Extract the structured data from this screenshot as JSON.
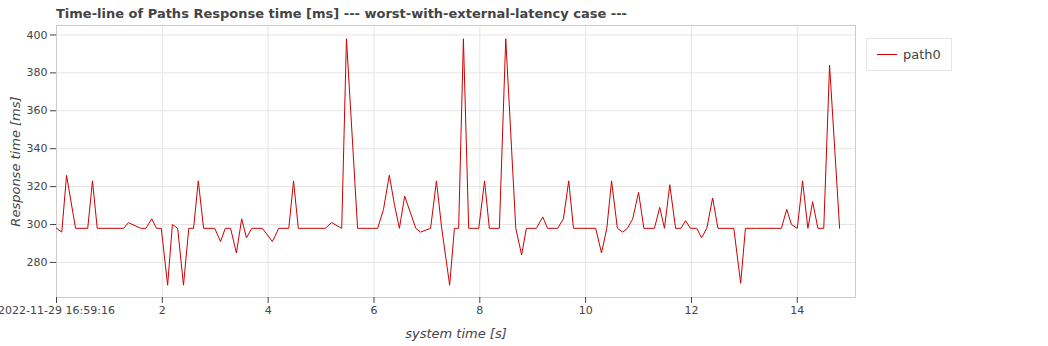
{
  "chart_data": {
    "type": "line",
    "title": "Time-line of Paths Response time [ms] --- worst-with-external-latency case ---",
    "xlabel": "system time [s]",
    "ylabel": "Response time [ms]",
    "x": [
      0,
      0.1,
      0.19,
      0.36,
      0.59,
      0.68,
      0.77,
      1.27,
      1.36,
      1.59,
      1.69,
      1.8,
      1.89,
      1.98,
      2.1,
      2.19,
      2.29,
      2.4,
      2.5,
      2.59,
      2.68,
      2.78,
      2.99,
      3.1,
      3.19,
      3.29,
      3.4,
      3.5,
      3.59,
      3.69,
      3.89,
      4.08,
      4.2,
      4.39,
      4.48,
      4.57,
      5.08,
      5.2,
      5.39,
      5.48,
      5.69,
      5.88,
      5.97,
      6.07,
      6.18,
      6.29,
      6.39,
      6.48,
      6.58,
      6.79,
      6.88,
      7.07,
      7.18,
      7.28,
      7.43,
      7.52,
      7.6,
      7.69,
      7.79,
      7.88,
      7.98,
      8.09,
      8.18,
      8.37,
      8.49,
      8.68,
      8.79,
      8.88,
      9.07,
      9.19,
      9.28,
      9.47,
      9.58,
      9.68,
      9.77,
      10.19,
      10.3,
      10.4,
      10.49,
      10.6,
      10.7,
      10.79,
      10.89,
      11.0,
      11.1,
      11.3,
      11.4,
      11.49,
      11.59,
      11.7,
      11.8,
      11.89,
      11.98,
      12.1,
      12.19,
      12.29,
      12.4,
      12.5,
      12.8,
      12.93,
      13.02,
      13.21,
      13.7,
      13.8,
      13.89,
      14.0,
      14.1,
      14.2,
      14.29,
      14.39,
      14.5,
      14.61,
      14.8
    ],
    "series": [
      {
        "name": "path0",
        "color": "#cc0000",
        "values": [
          298,
          296,
          326,
          298,
          298,
          323,
          298,
          298,
          301,
          298,
          298,
          303,
          298,
          298,
          268,
          300,
          298,
          268,
          298,
          298,
          323,
          298,
          298,
          291,
          298,
          298,
          285,
          303,
          293,
          298,
          298,
          291,
          298,
          298,
          323,
          298,
          298,
          301,
          298,
          398,
          298,
          298,
          298,
          298,
          308,
          326,
          310,
          298,
          315,
          298,
          296,
          298,
          323,
          298,
          268,
          298,
          298,
          398,
          298,
          298,
          298,
          323,
          298,
          298,
          398,
          298,
          284,
          298,
          298,
          304,
          298,
          298,
          303,
          323,
          298,
          298,
          285,
          298,
          323,
          298,
          296,
          298,
          303,
          317,
          298,
          298,
          309,
          298,
          321,
          298,
          298,
          302,
          298,
          298,
          293,
          298,
          314,
          298,
          298,
          269,
          298,
          298,
          298,
          308,
          300,
          298,
          323,
          298,
          312,
          298,
          298,
          384,
          298
        ]
      }
    ],
    "xlim": [
      0,
      15.1
    ],
    "xticks": [
      {
        "value": 0,
        "label": "2022-11-29 16:59:16"
      },
      2,
      4,
      6,
      8,
      10,
      12,
      14
    ],
    "ylim": [
      261.5,
      405
    ],
    "yticks": [
      280,
      300,
      320,
      340,
      360,
      380,
      400
    ],
    "grid": true,
    "legend": "right"
  }
}
